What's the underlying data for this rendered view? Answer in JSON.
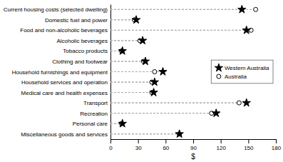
{
  "chart_data": {
    "type": "dot",
    "orientation": "horizontal",
    "categories": [
      "Current housing costs (selected dwelling)",
      "Domestic fuel and power",
      "Food and non-alcoholic beverages",
      "Alcoholic beverages",
      "Tobacco products",
      "Clothing and footwear",
      "Household furnishings and equipment",
      "Household services and operation",
      "Medical care and health expenses",
      "Transport",
      "Recreation",
      "Personal care",
      "Miscellaneous goods and services"
    ],
    "series": [
      {
        "name": "Western Australia",
        "color": "#000000",
        "marker": "star",
        "values": [
          143,
          28,
          148,
          35,
          13,
          38,
          57,
          48,
          47,
          148,
          115,
          13,
          75
        ]
      },
      {
        "name": "Australia",
        "color": "#000000",
        "marker": "open-circle",
        "values": [
          158,
          26,
          153,
          32,
          12,
          36,
          48,
          45,
          45,
          140,
          110,
          12,
          75
        ]
      }
    ],
    "xlabel": "$",
    "xlim": [
      0,
      180
    ],
    "xticks": [
      0,
      30,
      60,
      90,
      120,
      150,
      180
    ],
    "legend": "right"
  }
}
